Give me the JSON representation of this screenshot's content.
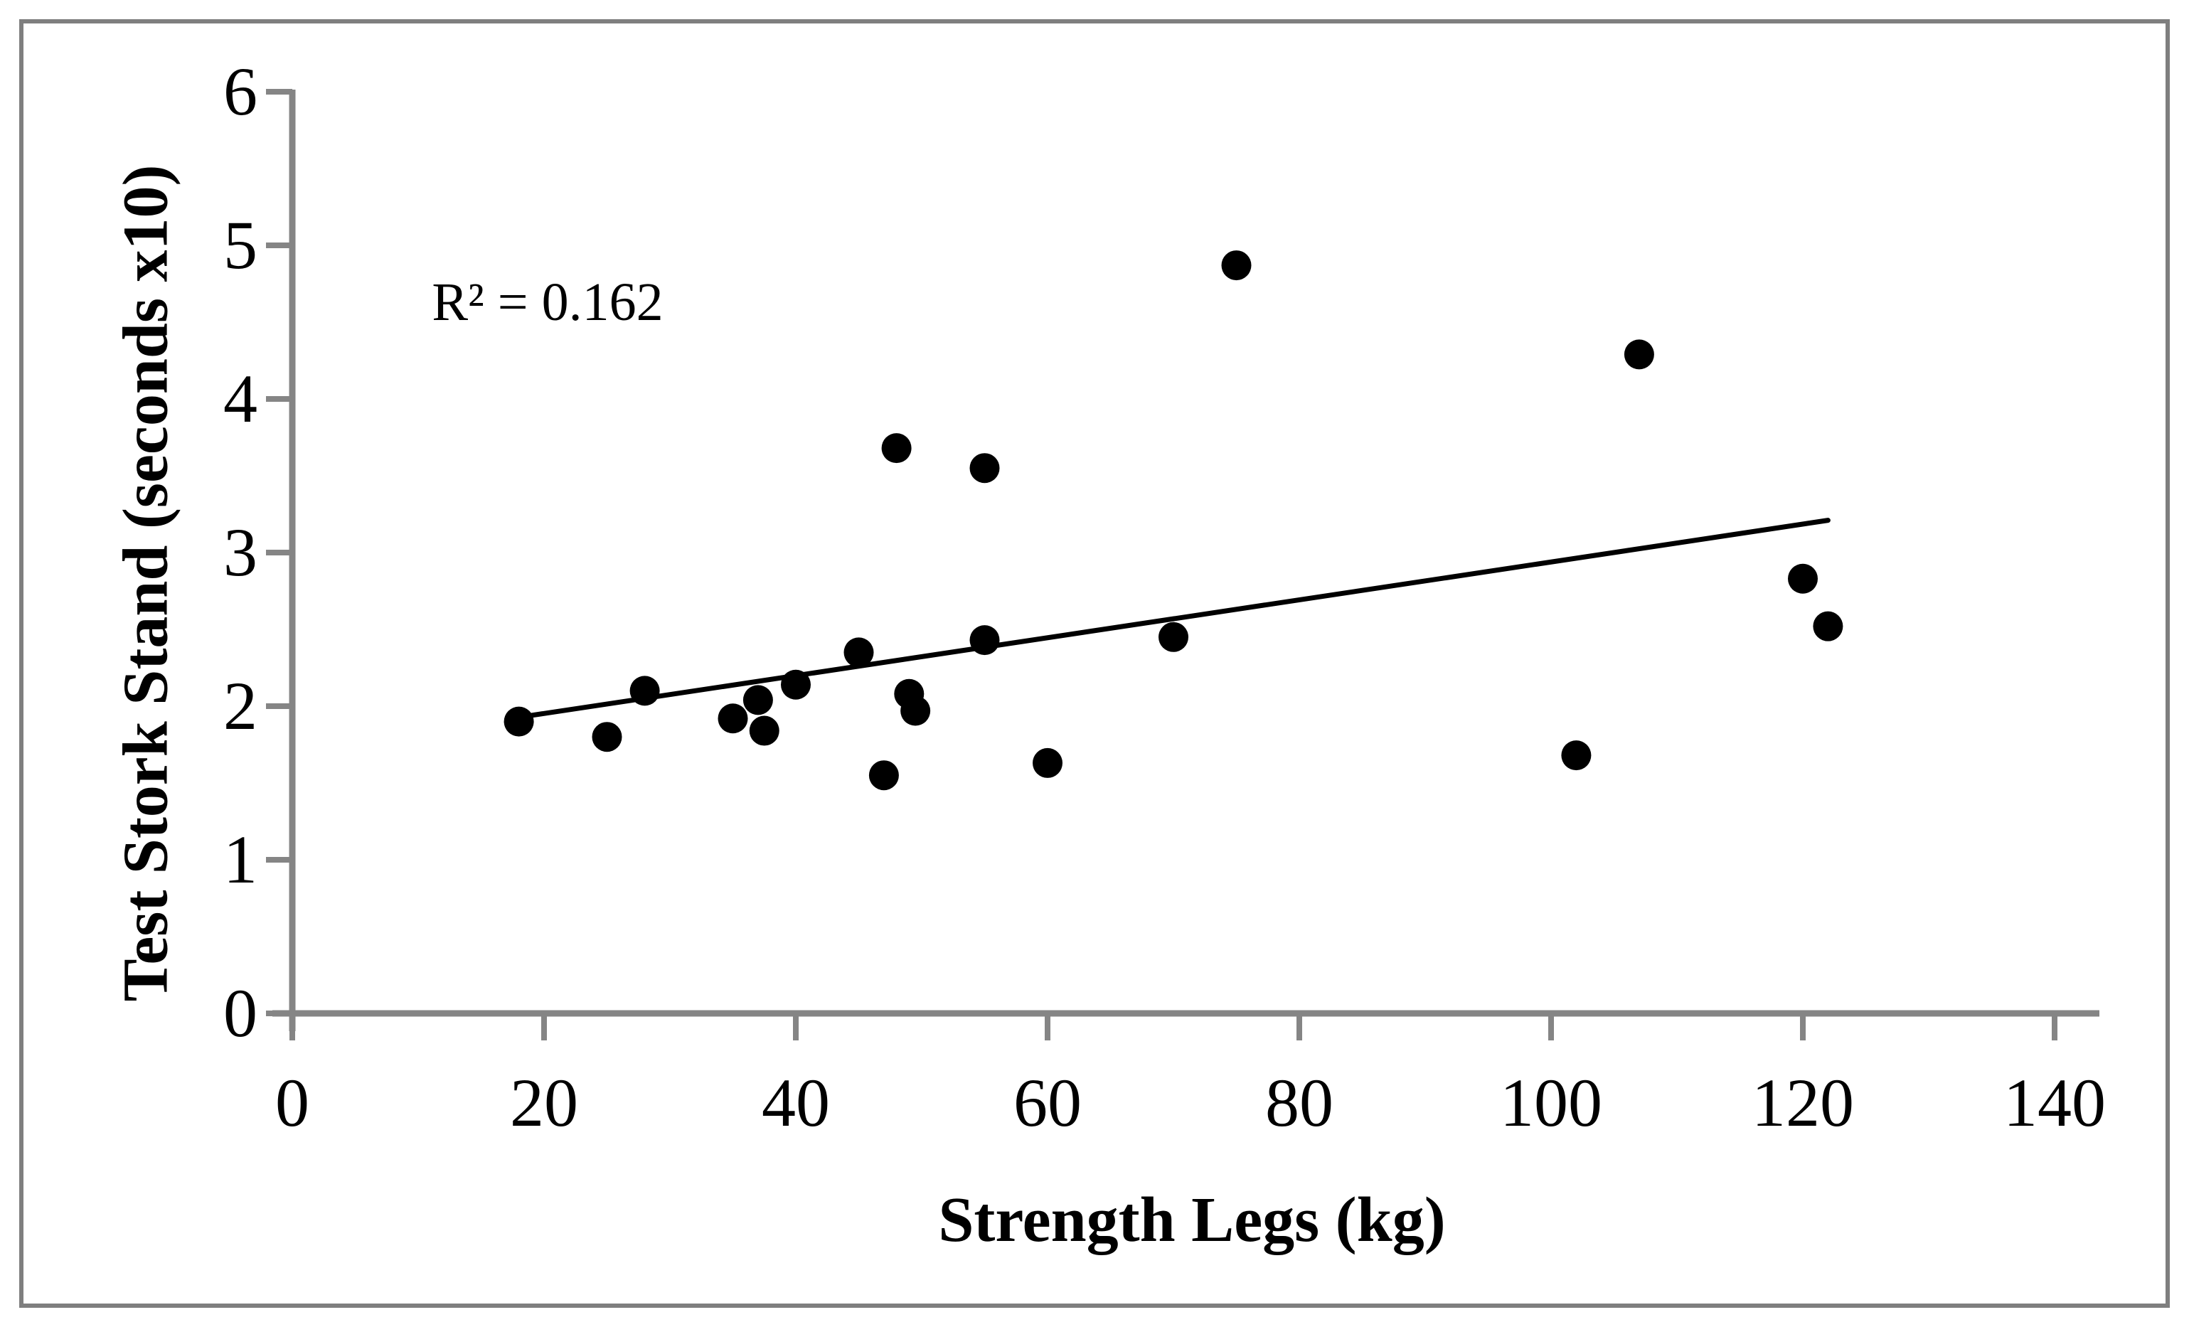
{
  "chart_data": {
    "type": "scatter",
    "title": "",
    "xlabel": "Strength Legs (kg)",
    "ylabel": "Test Stork Stand (seconds x10)",
    "annotation": "R² = 0.162",
    "r_squared": 0.162,
    "xlim": [
      0,
      140
    ],
    "ylim": [
      0,
      6
    ],
    "x_ticks": [
      0,
      20,
      40,
      60,
      80,
      100,
      120,
      140
    ],
    "y_ticks": [
      0,
      1,
      2,
      3,
      4,
      5,
      6
    ],
    "grid": false,
    "legend": "none",
    "marker": {
      "shape": "circle",
      "color": "#000000"
    },
    "points": [
      [
        18,
        1.9
      ],
      [
        25,
        1.8
      ],
      [
        28,
        2.1
      ],
      [
        35,
        1.92
      ],
      [
        37,
        2.04
      ],
      [
        37.5,
        1.84
      ],
      [
        40,
        2.14
      ],
      [
        45,
        2.35
      ],
      [
        47,
        1.55
      ],
      [
        48,
        3.68
      ],
      [
        49,
        2.08
      ],
      [
        49.5,
        1.97
      ],
      [
        55,
        3.55
      ],
      [
        55,
        2.43
      ],
      [
        60,
        1.63
      ],
      [
        70,
        2.45
      ],
      [
        75,
        4.87
      ],
      [
        102,
        1.68
      ],
      [
        107,
        4.29
      ],
      [
        120,
        2.83
      ],
      [
        122,
        2.52
      ]
    ],
    "trendline": {
      "type": "linear",
      "x1": 19,
      "y1": 1.94,
      "x2": 122,
      "y2": 3.21,
      "slope": 0.0123,
      "intercept": 1.71
    },
    "colors": {
      "marker": "#000000",
      "trendline": "#000000",
      "axis": "#858585",
      "frame": "#7f7f7f",
      "background": "#ffffff",
      "text": "#000000"
    }
  }
}
